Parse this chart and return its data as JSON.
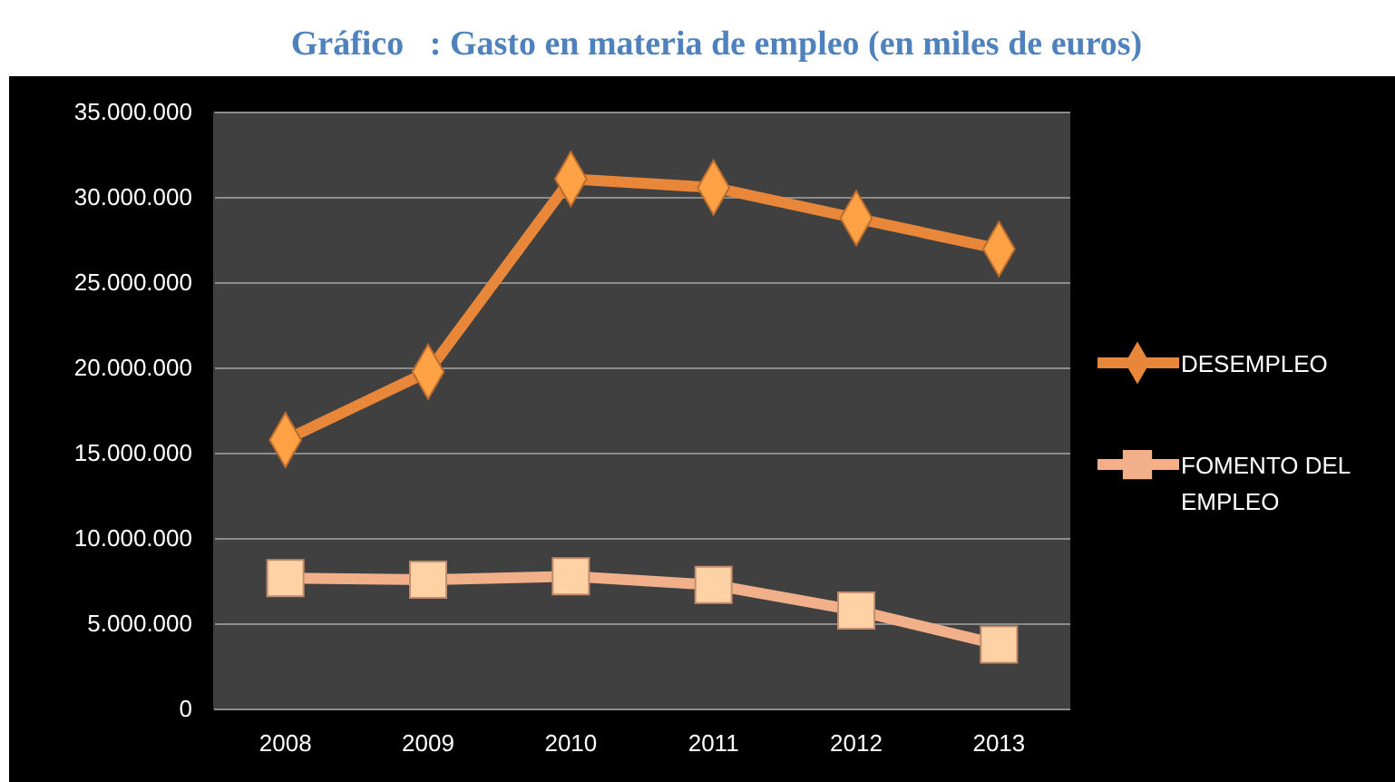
{
  "chart_data": {
    "type": "line",
    "title": "Gráfico   : Gasto en materia de empleo (en miles de euros)",
    "categories": [
      "2008",
      "2009",
      "2010",
      "2011",
      "2012",
      "2013"
    ],
    "series": [
      {
        "name": "DESEMPLEO",
        "color": "#e8873a",
        "marker": "diamond",
        "values": [
          15800000,
          19800000,
          31100000,
          30600000,
          28800000,
          27000000
        ]
      },
      {
        "name": "FOMENTO DEL EMPLEO",
        "color": "#f2b08a",
        "marker": "square",
        "values": [
          7700000,
          7600000,
          7800000,
          7300000,
          5800000,
          3800000
        ]
      }
    ],
    "ylim": [
      0,
      35000000
    ],
    "yticks": [
      {
        "value": 0,
        "label": "0"
      },
      {
        "value": 5000000,
        "label": "5.000.000"
      },
      {
        "value": 10000000,
        "label": "10.000.000"
      },
      {
        "value": 15000000,
        "label": "15.000.000"
      },
      {
        "value": 20000000,
        "label": "20.000.000"
      },
      {
        "value": 25000000,
        "label": "25.000.000"
      },
      {
        "value": 30000000,
        "label": "30.000.000"
      },
      {
        "value": 35000000,
        "label": "35.000.000"
      }
    ],
    "grid": "y",
    "legend": "right",
    "line_style": "solid"
  }
}
